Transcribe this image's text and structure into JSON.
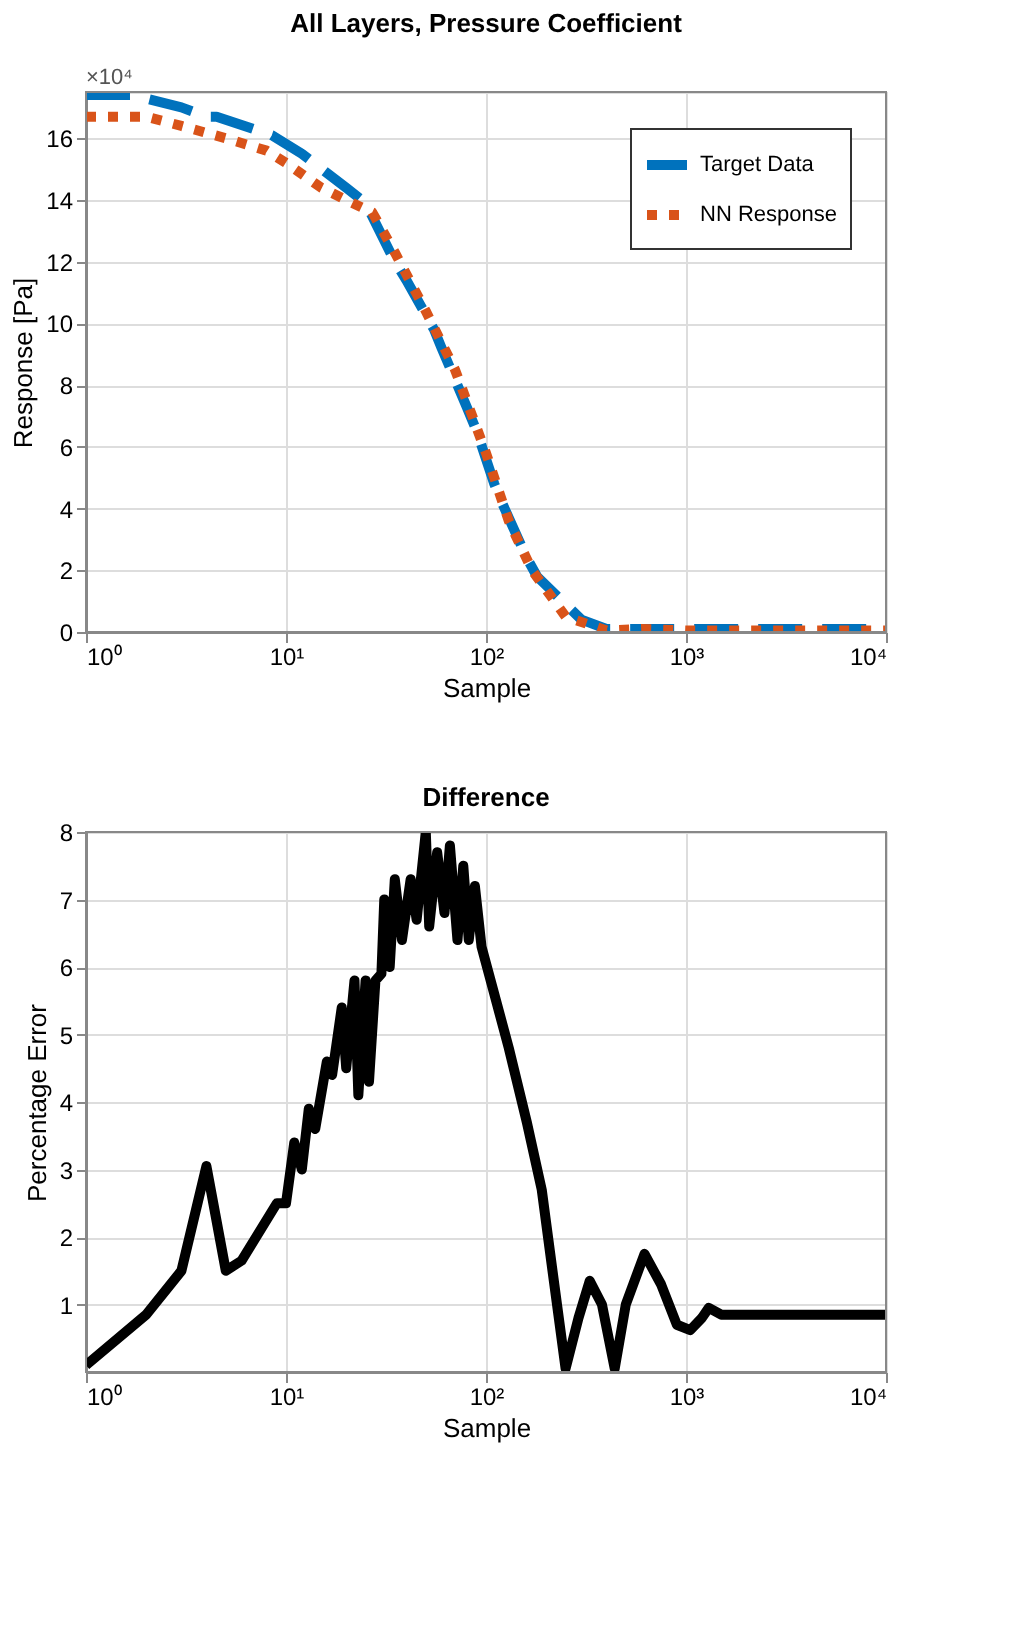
{
  "chart_data": [
    {
      "type": "line",
      "title": "All Layers, Pressure Coefficient",
      "xlabel": "Sample",
      "ylabel": "Response [Pa]",
      "log": "x",
      "grid": true,
      "legend": "top right",
      "annotations": [
        "×10⁴"
      ],
      "xlim": [
        1,
        10000
      ],
      "ylim": [
        0,
        17.5
      ],
      "xticks": [
        {
          "value": 1,
          "label": "10⁰"
        },
        {
          "value": 10,
          "label": "10¹"
        },
        {
          "value": 100,
          "label": "10²"
        },
        {
          "value": 1000,
          "label": "10³"
        },
        {
          "value": 10000,
          "label": "10⁴"
        }
      ],
      "yticks": [
        0,
        2,
        4,
        6,
        8,
        10,
        12,
        14,
        16
      ],
      "series": [
        {
          "name": "Target Data",
          "color": "#0072bd",
          "line_style": "dashed",
          "x": [
            1,
            1.7,
            3,
            4,
            4.5,
            8.5,
            12,
            20,
            25,
            35,
            40,
            55,
            60,
            80,
            90,
            110,
            120,
            160,
            180,
            300,
            400,
            1000,
            10000
          ],
          "values": [
            17.4,
            17.4,
            17.0,
            16.7,
            16.7,
            16.1,
            15.5,
            14.4,
            13.9,
            12.0,
            11.4,
            9.8,
            9.2,
            7.3,
            6.5,
            4.8,
            4.2,
            2.4,
            1.8,
            0.4,
            0.1,
            0.1,
            0.1
          ]
        },
        {
          "name": "NN Response",
          "color": "#d95319",
          "line_style": "dotted",
          "x": [
            1,
            2,
            3,
            5,
            8,
            10,
            15,
            20,
            27,
            35,
            50,
            70,
            100,
            130,
            170,
            250,
            400,
            600,
            1000,
            10000
          ],
          "values": [
            16.7,
            16.7,
            16.4,
            16.0,
            15.6,
            15.2,
            14.4,
            14.0,
            13.6,
            12.3,
            10.4,
            8.5,
            5.8,
            3.6,
            2.0,
            0.5,
            0.05,
            0.1,
            0.05,
            0.05
          ]
        }
      ]
    },
    {
      "type": "line",
      "title": "Difference",
      "xlabel": "Sample",
      "ylabel": "Percentage Error",
      "log": "x",
      "grid": true,
      "xlim": [
        1,
        10000
      ],
      "ylim": [
        0,
        8
      ],
      "xticks": [
        {
          "value": 1,
          "label": "10⁰"
        },
        {
          "value": 10,
          "label": "10¹"
        },
        {
          "value": 100,
          "label": "10²"
        },
        {
          "value": 1000,
          "label": "10³"
        },
        {
          "value": 10000,
          "label": "10⁴"
        }
      ],
      "yticks": [
        1,
        2,
        3,
        4,
        5,
        6,
        7,
        8
      ],
      "series": [
        {
          "color": "#000000",
          "line_style": "solid",
          "x": [
            1,
            2,
            3,
            4,
            5,
            6,
            9,
            10,
            11,
            12,
            13,
            14,
            16,
            17,
            19,
            20,
            22,
            23,
            25,
            26,
            28,
            30,
            31,
            33,
            35,
            38,
            42,
            45,
            50,
            52,
            57,
            62,
            66,
            72,
            77,
            82,
            88,
            95,
            110,
            130,
            160,
            190,
            215,
            250,
            290,
            330,
            380,
            440,
            500,
            620,
            750,
            900,
            1050,
            1200,
            1300,
            1500,
            10000
          ],
          "values": [
            0.1,
            0.85,
            1.5,
            3.05,
            1.5,
            1.65,
            2.5,
            2.5,
            3.4,
            3.0,
            3.9,
            3.6,
            4.6,
            4.4,
            5.4,
            4.5,
            5.8,
            4.1,
            5.8,
            4.3,
            5.8,
            5.9,
            7.0,
            6.0,
            7.3,
            6.4,
            7.3,
            6.7,
            8.0,
            6.6,
            7.7,
            6.8,
            7.8,
            6.4,
            7.5,
            6.4,
            7.2,
            6.3,
            5.6,
            4.8,
            3.7,
            2.7,
            1.5,
            0.05,
            0.8,
            1.35,
            1.0,
            0.05,
            1.0,
            1.75,
            1.3,
            0.7,
            0.62,
            0.8,
            0.95,
            0.85,
            0.85
          ]
        }
      ]
    }
  ]
}
